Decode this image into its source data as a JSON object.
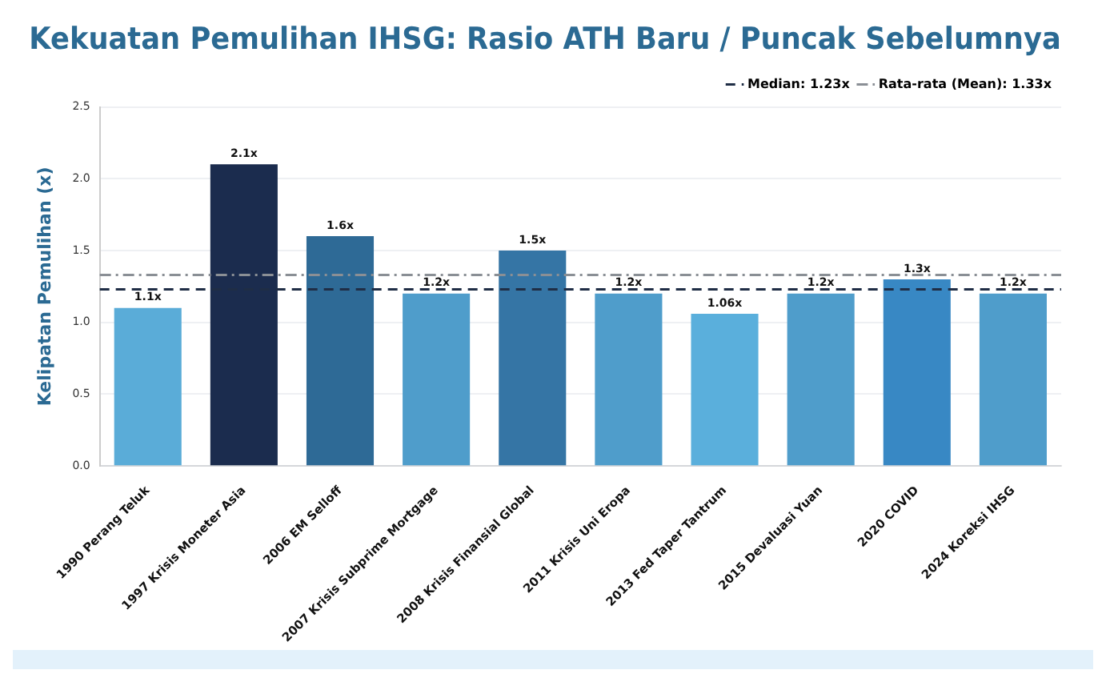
{
  "chart_data": {
    "type": "bar",
    "title": "Kekuatan Pemulihan IHSG: Rasio ATH Baru / Puncak Sebelumnya",
    "ylabel": "Kelipatan Pemulihan (x)",
    "categories": [
      "1990 Perang Teluk",
      "1997 Krisis Moneter Asia",
      "2006 EM Selloff",
      "2007 Krisis Subprime Mortgage",
      "2008 Krisis Finansial Global",
      "2011 Krisis Uni Eropa",
      "2013 Fed Taper Tantrum",
      "2015 Devaluasi Yuan",
      "2020 COVID",
      "2024 Koreksi IHSG"
    ],
    "values": [
      1.1,
      2.1,
      1.6,
      1.2,
      1.5,
      1.2,
      1.06,
      1.2,
      1.3,
      1.2
    ],
    "value_labels": [
      "1.1x",
      "2.1x",
      "1.6x",
      "1.2x",
      "1.5x",
      "1.2x",
      "1.06x",
      "1.2x",
      "1.3x",
      "1.2x"
    ],
    "colors": [
      "#5aacd8",
      "#1b2c4e",
      "#2e6a96",
      "#4f9dcb",
      "#3575a5",
      "#4f9dcb",
      "#5aafdc",
      "#4f9dcb",
      "#3888c4",
      "#4f9dcb"
    ],
    "ylim": [
      0,
      2.5
    ],
    "yticks": [
      {
        "value": 0,
        "label": "0.0"
      },
      {
        "value": 0.5,
        "label": "0.5"
      },
      {
        "value": 1,
        "label": "1.0"
      },
      {
        "value": 1.5,
        "label": "1.5"
      },
      {
        "value": 2,
        "label": "2.0"
      },
      {
        "value": 2.5,
        "label": "2.5"
      }
    ],
    "grid": "y",
    "legend": "top right",
    "ref_lines": [
      {
        "axis": "y",
        "value": 1.23,
        "label": "Median: 1.23x",
        "color": "#1f2d45",
        "line_style": "dashed"
      },
      {
        "axis": "y",
        "value": 1.33,
        "label": "Rata-rata (Mean): 1.33x",
        "color": "#8a8f95",
        "line_style": "dotted"
      }
    ]
  }
}
